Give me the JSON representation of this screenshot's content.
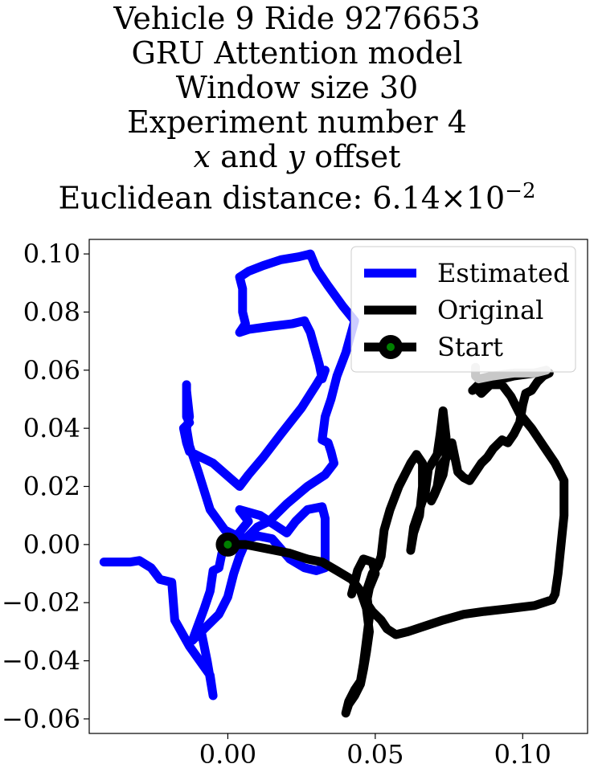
{
  "chart_data": {
    "type": "line",
    "title_lines": [
      "Vehicle 9 Ride 9276653",
      "GRU Attention model",
      "Window size 30",
      "Experiment number 4",
      "x and y offset",
      "Euclidean distance: 6.14×10⁻²"
    ],
    "title_parts": {
      "x_var": "x",
      "and_word": " and ",
      "y_var": "y",
      "offset_word": " offset",
      "dist_prefix": "Euclidean distance: 6.14×10",
      "dist_exponent": "−2"
    },
    "xlabel": "",
    "ylabel": "",
    "xlim": [
      -0.047,
      0.122
    ],
    "ylim": [
      -0.065,
      0.105
    ],
    "x_ticks": [
      0.0,
      0.05,
      0.1
    ],
    "x_tick_labels": [
      "0.00",
      "0.05",
      "0.10"
    ],
    "y_ticks": [
      0.1,
      0.08,
      0.06,
      0.04,
      0.02,
      0.0,
      -0.02,
      -0.04,
      -0.06
    ],
    "y_tick_labels": [
      "0.10",
      "0.08",
      "0.06",
      "0.04",
      "0.02",
      "0.00",
      "−0.02",
      "−0.04",
      "−0.06"
    ],
    "grid": false,
    "legend_position": "top-right",
    "series": [
      {
        "name": "Estimated",
        "color": "#0000ff",
        "points": [
          [
            -0.042,
            -0.006
          ],
          [
            -0.033,
            -0.006
          ],
          [
            -0.03,
            -0.0055
          ],
          [
            -0.026,
            -0.008
          ],
          [
            -0.023,
            -0.012
          ],
          [
            -0.019,
            -0.013
          ],
          [
            -0.018,
            -0.026
          ],
          [
            -0.013,
            -0.035
          ],
          [
            -0.006,
            -0.045
          ],
          [
            -0.005,
            -0.052
          ],
          [
            -0.007,
            -0.04
          ],
          [
            -0.009,
            -0.03
          ],
          [
            -0.012,
            -0.033
          ],
          [
            -0.008,
            -0.022
          ],
          [
            -0.006,
            -0.016
          ],
          [
            -0.005,
            -0.009
          ],
          [
            -0.003,
            -0.008
          ],
          [
            -0.002,
            -0.003
          ],
          [
            0.0,
            0.0
          ],
          [
            0.003,
            0.003
          ],
          [
            0.007,
            0.008
          ],
          [
            0.004,
            0.012
          ],
          [
            0.011,
            0.01
          ],
          [
            0.017,
            0.006
          ],
          [
            0.02,
            0.004
          ],
          [
            0.023,
            0.008
          ],
          [
            0.027,
            0.012
          ],
          [
            0.032,
            0.013
          ],
          [
            0.033,
            0.009
          ],
          [
            0.033,
            -0.001
          ],
          [
            0.033,
            -0.008
          ],
          [
            0.03,
            -0.009
          ],
          [
            0.026,
            -0.008
          ],
          [
            0.021,
            -0.005
          ],
          [
            0.015,
            0.002
          ],
          [
            0.01,
            0.003
          ],
          [
            0.007,
            0.002
          ],
          [
            0.003,
            0.003
          ],
          [
            -0.001,
            0.005
          ],
          [
            -0.006,
            0.012
          ],
          [
            -0.01,
            0.025
          ],
          [
            -0.013,
            0.034
          ],
          [
            -0.014,
            0.04
          ],
          [
            -0.013,
            0.044
          ],
          [
            -0.014,
            0.053
          ],
          [
            -0.014,
            0.055
          ],
          [
            -0.014,
            0.05
          ],
          [
            -0.014,
            0.044
          ],
          [
            -0.013,
            0.042
          ],
          [
            -0.015,
            0.04
          ],
          [
            -0.014,
            0.035
          ],
          [
            -0.013,
            0.032
          ],
          [
            -0.005,
            0.028
          ],
          [
            0.004,
            0.02
          ],
          [
            0.007,
            0.024
          ],
          [
            0.012,
            0.03
          ],
          [
            0.018,
            0.038
          ],
          [
            0.025,
            0.047
          ],
          [
            0.03,
            0.055
          ],
          [
            0.033,
            0.06
          ],
          [
            0.032,
            0.057
          ],
          [
            0.031,
            0.062
          ],
          [
            0.028,
            0.073
          ],
          [
            0.026,
            0.077
          ],
          [
            0.022,
            0.076
          ],
          [
            0.014,
            0.075
          ],
          [
            0.007,
            0.074
          ],
          [
            0.004,
            0.073
          ],
          [
            0.006,
            0.076
          ],
          [
            0.005,
            0.08
          ],
          [
            0.005,
            0.088
          ],
          [
            0.004,
            0.092
          ],
          [
            0.007,
            0.094
          ],
          [
            0.012,
            0.096
          ],
          [
            0.018,
            0.098
          ],
          [
            0.024,
            0.099
          ],
          [
            0.028,
            0.1
          ],
          [
            0.03,
            0.095
          ],
          [
            0.034,
            0.089
          ],
          [
            0.039,
            0.082
          ],
          [
            0.043,
            0.077
          ],
          [
            0.04,
            0.066
          ],
          [
            0.037,
            0.058
          ],
          [
            0.035,
            0.05
          ],
          [
            0.033,
            0.044
          ],
          [
            0.032,
            0.036
          ],
          [
            0.034,
            0.035
          ],
          [
            0.035,
            0.032
          ],
          [
            0.036,
            0.028
          ],
          [
            0.033,
            0.024
          ],
          [
            0.027,
            0.02
          ],
          [
            0.02,
            0.014
          ],
          [
            0.014,
            0.008
          ],
          [
            0.01,
            0.006
          ],
          [
            0.007,
            0.003
          ],
          [
            0.004,
            -0.004
          ],
          [
            0.002,
            -0.01
          ],
          [
            0.0,
            -0.018
          ],
          [
            -0.003,
            -0.024
          ],
          [
            -0.009,
            -0.03
          ]
        ]
      },
      {
        "name": "Original",
        "color": "#000000",
        "points": [
          [
            0.0,
            0.0
          ],
          [
            0.006,
            0.0
          ],
          [
            0.011,
            -0.001
          ],
          [
            0.016,
            -0.002
          ],
          [
            0.021,
            -0.003
          ],
          [
            0.027,
            -0.005
          ],
          [
            0.032,
            -0.006
          ],
          [
            0.037,
            -0.009
          ],
          [
            0.042,
            -0.012
          ],
          [
            0.045,
            -0.016
          ],
          [
            0.047,
            -0.022
          ],
          [
            0.048,
            -0.03
          ],
          [
            0.047,
            -0.037
          ],
          [
            0.046,
            -0.043
          ],
          [
            0.045,
            -0.048
          ],
          [
            0.043,
            -0.052
          ],
          [
            0.041,
            -0.055
          ],
          [
            0.04,
            -0.058
          ],
          [
            0.041,
            -0.054
          ],
          [
            0.043,
            -0.05
          ],
          [
            0.045,
            -0.047
          ],
          [
            0.046,
            -0.041
          ],
          [
            0.047,
            -0.033
          ],
          [
            0.048,
            -0.025
          ],
          [
            0.047,
            -0.016
          ],
          [
            0.049,
            -0.01
          ],
          [
            0.051,
            -0.007
          ],
          [
            0.052,
            -0.004
          ],
          [
            0.053,
            0.005
          ],
          [
            0.055,
            0.012
          ],
          [
            0.058,
            0.02
          ],
          [
            0.062,
            0.028
          ],
          [
            0.064,
            0.031
          ],
          [
            0.066,
            0.028
          ],
          [
            0.066,
            0.02
          ],
          [
            0.065,
            0.01
          ],
          [
            0.063,
            0.004
          ],
          [
            0.062,
            -0.002
          ],
          [
            0.063,
            0.006
          ],
          [
            0.065,
            0.012
          ],
          [
            0.067,
            0.018
          ],
          [
            0.068,
            0.026
          ],
          [
            0.071,
            0.031
          ],
          [
            0.072,
            0.038
          ],
          [
            0.073,
            0.046
          ],
          [
            0.074,
            0.037
          ],
          [
            0.074,
            0.03
          ],
          [
            0.073,
            0.024
          ],
          [
            0.07,
            0.017
          ],
          [
            0.069,
            0.015
          ],
          [
            0.071,
            0.02
          ],
          [
            0.072,
            0.027
          ],
          [
            0.075,
            0.031
          ],
          [
            0.076,
            0.035
          ],
          [
            0.077,
            0.03
          ],
          [
            0.078,
            0.025
          ],
          [
            0.08,
            0.023
          ],
          [
            0.082,
            0.022
          ],
          [
            0.084,
            0.025
          ],
          [
            0.086,
            0.028
          ],
          [
            0.088,
            0.03
          ],
          [
            0.09,
            0.033
          ],
          [
            0.093,
            0.036
          ],
          [
            0.095,
            0.035
          ],
          [
            0.097,
            0.038
          ],
          [
            0.099,
            0.042
          ],
          [
            0.1,
            0.048
          ],
          [
            0.101,
            0.052
          ],
          [
            0.103,
            0.053
          ],
          [
            0.105,
            0.056
          ],
          [
            0.107,
            0.058
          ],
          [
            0.109,
            0.059
          ],
          [
            0.104,
            0.059
          ],
          [
            0.097,
            0.058
          ],
          [
            0.093,
            0.057
          ],
          [
            0.09,
            0.056
          ],
          [
            0.086,
            0.052
          ],
          [
            0.084,
            0.054
          ],
          [
            0.083,
            0.053
          ],
          [
            0.086,
            0.056
          ],
          [
            0.089,
            0.055
          ],
          [
            0.093,
            0.055
          ],
          [
            0.096,
            0.051
          ],
          [
            0.099,
            0.045
          ],
          [
            0.103,
            0.04
          ],
          [
            0.107,
            0.034
          ],
          [
            0.111,
            0.028
          ],
          [
            0.114,
            0.022
          ],
          [
            0.114,
            0.01
          ],
          [
            0.113,
            0.0
          ],
          [
            0.112,
            -0.01
          ],
          [
            0.111,
            -0.017
          ],
          [
            0.11,
            -0.019
          ],
          [
            0.104,
            -0.021
          ],
          [
            0.096,
            -0.022
          ],
          [
            0.087,
            -0.023
          ],
          [
            0.08,
            -0.024
          ],
          [
            0.073,
            -0.026
          ],
          [
            0.067,
            -0.028
          ],
          [
            0.061,
            -0.03
          ],
          [
            0.057,
            -0.031
          ],
          [
            0.054,
            -0.029
          ],
          [
            0.052,
            -0.026
          ],
          [
            0.049,
            -0.023
          ],
          [
            0.047,
            -0.02
          ],
          [
            0.048,
            -0.015
          ],
          [
            0.05,
            -0.01
          ],
          [
            0.049,
            -0.006
          ],
          [
            0.046,
            -0.005
          ],
          [
            0.044,
            -0.009
          ],
          [
            0.043,
            -0.013
          ],
          [
            0.042,
            -0.017
          ]
        ],
        "end_segment_color": "#c8c8c8",
        "end_segment": [
          [
            0.084,
            0.061
          ],
          [
            0.084,
            0.058
          ],
          [
            0.085,
            0.057
          ],
          [
            0.09,
            0.058
          ],
          [
            0.097,
            0.059
          ],
          [
            0.104,
            0.059
          ],
          [
            0.108,
            0.06
          ]
        ]
      },
      {
        "name": "Start",
        "color": "#000000",
        "marker_fill": "#008000",
        "point": [
          0.0,
          0.0
        ]
      }
    ]
  }
}
